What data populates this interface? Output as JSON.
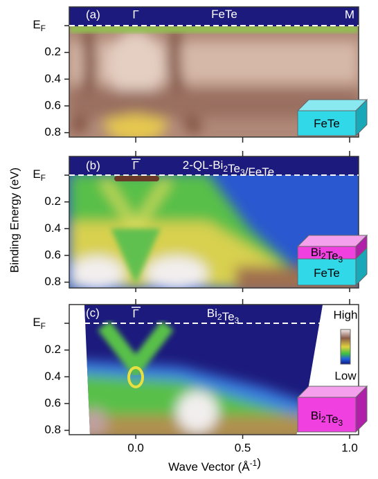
{
  "figure": {
    "y_label": "Binding Energy (eV)",
    "x_label": [
      {
        "text": "Wave Vector (Å"
      },
      {
        "text": "-1",
        "sup": true
      },
      {
        "text": ")"
      }
    ],
    "xlim": [
      -0.311,
      1.042
    ],
    "xticks": [
      {
        "value": 0,
        "label": "0.0"
      },
      {
        "value": 0.5,
        "label": "0.5"
      },
      {
        "value": 1,
        "label": "1.0"
      }
    ],
    "ylim": [
      -0.14,
      0.833
    ],
    "yticks": [
      {
        "value": 0,
        "label": "E",
        "sub": "F"
      },
      0.2,
      0.4,
      0.6,
      0.8
    ],
    "panels": [
      {
        "tag": "(a)",
        "gamma": "Γ",
        "m": "M",
        "title": [
          {
            "text": "FeTe"
          }
        ],
        "insets": [
          [
            {
              "text": "FeTe"
            }
          ]
        ]
      },
      {
        "tag": "(b)",
        "gamma": "Γ",
        "title": [
          {
            "text": "2-QL-Bi"
          },
          {
            "text": "2",
            "sub": true
          },
          {
            "text": "Te"
          },
          {
            "text": "3",
            "sub": true
          },
          {
            "text": "/FeTe"
          }
        ],
        "insets": [
          [
            {
              "text": "Bi"
            },
            {
              "text": "2",
              "sub": true
            },
            {
              "text": "Te"
            },
            {
              "text": "3",
              "sub": true
            }
          ],
          [
            {
              "text": "FeTe"
            }
          ]
        ]
      },
      {
        "tag": "(c)",
        "gamma": "Γ",
        "title": [
          {
            "text": "Bi"
          },
          {
            "text": "2",
            "sub": true
          },
          {
            "text": "Te"
          },
          {
            "text": "3",
            "sub": true
          }
        ],
        "insets": [
          [
            {
              "text": "Bi"
            },
            {
              "text": "2",
              "sub": true
            },
            {
              "text": "Te"
            },
            {
              "text": "3",
              "sub": true
            }
          ]
        ],
        "colorbar": {
          "high": "High",
          "low": "Low"
        }
      }
    ]
  }
}
